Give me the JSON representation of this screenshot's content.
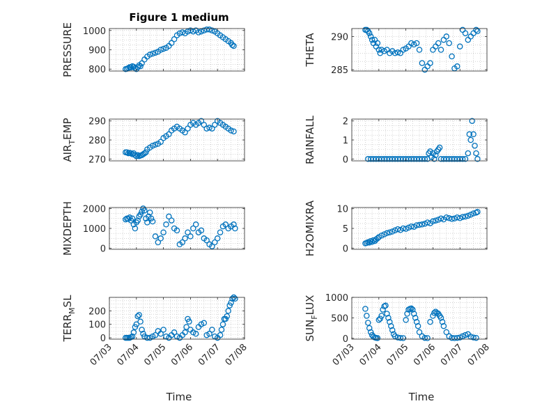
{
  "figure": {
    "title": "Figure 1 medium",
    "xlabel_left": "Time",
    "xlabel_right": "Time"
  },
  "colors": {
    "marker": "#0072BD",
    "axis": "#262626",
    "grid": "#b8b8b8",
    "box": "#ffffff"
  },
  "chart_data": [
    {
      "type": "scatter",
      "name": "PRESSURE",
      "ylabel_main": "PRESSURE",
      "ylabel_sub": "",
      "ylim": [
        790,
        1010
      ],
      "yticks": [
        800,
        900,
        1000
      ],
      "ytick_labels": [
        "800",
        "900",
        "1000"
      ],
      "xlim": [
        3,
        8
      ],
      "xticks": [
        3,
        4,
        5,
        6,
        7,
        8
      ],
      "x": [
        3.6,
        3.65,
        3.7,
        3.75,
        3.8,
        3.85,
        3.9,
        3.95,
        4.0,
        4.05,
        4.1,
        4.15,
        4.2,
        4.3,
        4.4,
        4.5,
        4.6,
        4.7,
        4.8,
        4.9,
        5.0,
        5.1,
        5.2,
        5.3,
        5.4,
        5.5,
        5.6,
        5.7,
        5.8,
        5.9,
        6.0,
        6.1,
        6.2,
        6.3,
        6.4,
        6.5,
        6.6,
        6.7,
        6.8,
        6.9,
        7.0,
        7.1,
        7.2,
        7.3,
        7.4,
        7.5,
        7.55,
        7.6
      ],
      "y": [
        800,
        802,
        805,
        810,
        808,
        815,
        812,
        805,
        800,
        810,
        820,
        815,
        830,
        850,
        865,
        875,
        880,
        885,
        890,
        900,
        905,
        910,
        920,
        935,
        955,
        975,
        985,
        990,
        985,
        995,
        1000,
        995,
        1000,
        990,
        995,
        1000,
        1005,
        1005,
        1000,
        995,
        985,
        975,
        965,
        955,
        945,
        935,
        925,
        920
      ]
    },
    {
      "type": "scatter",
      "name": "THETA",
      "ylabel_main": "THETA",
      "ylabel_sub": "",
      "ylim": [
        284.8,
        291.2
      ],
      "yticks": [
        285,
        290
      ],
      "ytick_labels": [
        "285",
        "290"
      ],
      "xlim": [
        3,
        8
      ],
      "xticks": [
        3,
        4,
        5,
        6,
        7,
        8
      ],
      "x": [
        3.5,
        3.55,
        3.6,
        3.65,
        3.7,
        3.75,
        3.8,
        3.85,
        3.9,
        3.95,
        4.0,
        4.05,
        4.1,
        4.2,
        4.3,
        4.4,
        4.5,
        4.6,
        4.7,
        4.8,
        4.9,
        5.0,
        5.1,
        5.2,
        5.3,
        5.4,
        5.5,
        5.6,
        5.7,
        5.8,
        5.9,
        6.0,
        6.1,
        6.2,
        6.3,
        6.4,
        6.5,
        6.6,
        6.7,
        6.8,
        6.9,
        7.0,
        7.1,
        7.2,
        7.3,
        7.4,
        7.5,
        7.6,
        7.65
      ],
      "y": [
        291,
        291,
        290.8,
        290.5,
        290,
        289.5,
        289,
        289.5,
        288.5,
        289,
        288,
        287.5,
        288,
        287.8,
        288,
        287.5,
        287.8,
        287.5,
        287.6,
        287.5,
        288,
        288.2,
        288.5,
        289,
        288.8,
        289,
        288,
        286,
        285,
        285.5,
        286,
        288,
        288.5,
        289,
        288,
        289.5,
        290,
        289,
        287,
        285.2,
        285.5,
        288.5,
        291,
        290.5,
        289.5,
        290,
        290.5,
        291,
        290.8
      ]
    },
    {
      "type": "scatter",
      "name": "AIR_TEMP",
      "ylabel_main": "AIR",
      "ylabel_sub": "T",
      "ylabel_post": "EMP",
      "ylim": [
        269,
        291
      ],
      "yticks": [
        270,
        280,
        290
      ],
      "ytick_labels": [
        "270",
        "280",
        "290"
      ],
      "xlim": [
        3,
        8
      ],
      "xticks": [
        3,
        4,
        5,
        6,
        7,
        8
      ],
      "x": [
        3.6,
        3.65,
        3.7,
        3.75,
        3.8,
        3.85,
        3.9,
        3.95,
        4.0,
        4.05,
        4.1,
        4.15,
        4.2,
        4.25,
        4.3,
        4.35,
        4.4,
        4.5,
        4.6,
        4.7,
        4.8,
        4.9,
        5.0,
        5.1,
        5.2,
        5.3,
        5.4,
        5.5,
        5.6,
        5.7,
        5.8,
        5.9,
        6.0,
        6.1,
        6.2,
        6.3,
        6.4,
        6.5,
        6.6,
        6.7,
        6.8,
        6.9,
        7.0,
        7.1,
        7.2,
        7.3,
        7.4,
        7.5,
        7.6
      ],
      "y": [
        273.5,
        273.5,
        273,
        273.2,
        273,
        272.5,
        273,
        272,
        271.5,
        272,
        271.5,
        271.8,
        272,
        272.5,
        273,
        273.5,
        275,
        276,
        277,
        277.5,
        278,
        279,
        281,
        282,
        283,
        285,
        286,
        287,
        286,
        285,
        284,
        286,
        288,
        289,
        288,
        289,
        290,
        288,
        286,
        286.5,
        286,
        288,
        290,
        289,
        288,
        287,
        286,
        285,
        284.5
      ]
    },
    {
      "type": "scatter",
      "name": "RAINFALL",
      "ylabel_main": "RAINFALL",
      "ylabel_sub": "",
      "ylim": [
        -0.1,
        2.1
      ],
      "yticks": [
        0,
        1,
        2
      ],
      "ytick_labels": [
        "0",
        "1",
        "2"
      ],
      "xlim": [
        3,
        8
      ],
      "xticks": [
        3,
        4,
        5,
        6,
        7,
        8
      ],
      "x": [
        3.6,
        3.7,
        3.8,
        3.9,
        4.0,
        4.1,
        4.2,
        4.3,
        4.4,
        4.5,
        4.6,
        4.7,
        4.8,
        4.9,
        5.0,
        5.1,
        5.2,
        5.3,
        5.4,
        5.5,
        5.6,
        5.7,
        5.8,
        5.85,
        5.9,
        5.95,
        6.0,
        6.05,
        6.1,
        6.15,
        6.2,
        6.25,
        6.3,
        6.4,
        6.5,
        6.6,
        6.7,
        6.8,
        6.9,
        7.0,
        7.1,
        7.2,
        7.3,
        7.35,
        7.4,
        7.45,
        7.5,
        7.55,
        7.6,
        7.65
      ],
      "y": [
        0,
        0,
        0,
        0,
        0,
        0,
        0,
        0,
        0,
        0,
        0,
        0,
        0,
        0,
        0,
        0,
        0,
        0,
        0,
        0,
        0,
        0,
        0,
        0.3,
        0.4,
        0.1,
        0.3,
        0,
        0.2,
        0.4,
        0.5,
        0.6,
        0,
        0,
        0,
        0,
        0,
        0,
        0,
        0,
        0,
        0,
        0.3,
        1.3,
        1.0,
        2.0,
        1.3,
        0.7,
        0.3,
        0
      ]
    },
    {
      "type": "scatter",
      "name": "MIXDEPTH",
      "ylabel_main": "MIXDEPTH",
      "ylabel_sub": "",
      "ylim": [
        -50,
        2050
      ],
      "yticks": [
        0,
        1000,
        2000
      ],
      "ytick_labels": [
        "0",
        "1000",
        "2000"
      ],
      "xlim": [
        3,
        8
      ],
      "xticks": [
        3,
        4,
        5,
        6,
        7,
        8
      ],
      "x": [
        3.6,
        3.65,
        3.7,
        3.75,
        3.8,
        3.85,
        3.9,
        3.95,
        4.0,
        4.05,
        4.1,
        4.15,
        4.2,
        4.25,
        4.3,
        4.35,
        4.4,
        4.45,
        4.5,
        4.55,
        4.6,
        4.7,
        4.8,
        4.9,
        5.0,
        5.1,
        5.2,
        5.3,
        5.4,
        5.5,
        5.6,
        5.7,
        5.8,
        5.9,
        6.0,
        6.1,
        6.2,
        6.3,
        6.4,
        6.5,
        6.6,
        6.7,
        6.8,
        6.9,
        7.0,
        7.1,
        7.2,
        7.3,
        7.4,
        7.5,
        7.6,
        7.65
      ],
      "y": [
        1450,
        1500,
        1480,
        1550,
        1400,
        1500,
        1200,
        1000,
        1300,
        1400,
        1600,
        1700,
        1850,
        2000,
        1900,
        1500,
        1300,
        1600,
        1800,
        1500,
        1350,
        600,
        300,
        500,
        800,
        1200,
        1600,
        1400,
        1000,
        900,
        200,
        300,
        500,
        800,
        600,
        1000,
        1200,
        800,
        900,
        500,
        400,
        200,
        100,
        300,
        500,
        800,
        1100,
        1200,
        1000,
        1100,
        1200,
        1000
      ]
    },
    {
      "type": "scatter",
      "name": "H2OMIXRA",
      "ylabel_main": "H2OMIXRA",
      "ylabel_sub": "",
      "ylim": [
        -0.3,
        10.3
      ],
      "yticks": [
        0,
        5,
        10
      ],
      "ytick_labels": [
        "0",
        "5",
        "10"
      ],
      "xlim": [
        3,
        8
      ],
      "xticks": [
        3,
        4,
        5,
        6,
        7,
        8
      ],
      "x": [
        3.5,
        3.55,
        3.6,
        3.65,
        3.7,
        3.75,
        3.8,
        3.85,
        3.9,
        3.95,
        4.0,
        4.1,
        4.2,
        4.3,
        4.4,
        4.5,
        4.6,
        4.7,
        4.8,
        4.9,
        5.0,
        5.1,
        5.2,
        5.3,
        5.4,
        5.5,
        5.6,
        5.7,
        5.8,
        5.9,
        6.0,
        6.1,
        6.2,
        6.3,
        6.4,
        6.5,
        6.6,
        6.7,
        6.8,
        6.9,
        7.0,
        7.1,
        7.2,
        7.3,
        7.4,
        7.5,
        7.6,
        7.65
      ],
      "y": [
        1.2,
        1.3,
        1.5,
        1.4,
        1.8,
        1.6,
        2.0,
        1.8,
        2.2,
        2.5,
        2.8,
        3.2,
        3.5,
        3.8,
        4.0,
        4.2,
        4.5,
        4.8,
        4.6,
        5.0,
        4.9,
        5.2,
        5.5,
        5.4,
        5.8,
        5.9,
        6.0,
        6.2,
        6.5,
        6.3,
        6.8,
        7.0,
        7.2,
        7.5,
        7.3,
        7.8,
        7.6,
        7.4,
        7.5,
        7.8,
        7.6,
        7.9,
        8.0,
        8.2,
        8.5,
        8.8,
        9.0,
        9.2
      ]
    },
    {
      "type": "scatter",
      "name": "TERR_MSL",
      "ylabel_main": "TERR",
      "ylabel_sub": "M",
      "ylabel_post": "SL",
      "ylim": [
        -10,
        300
      ],
      "yticks": [
        0,
        100,
        200
      ],
      "ytick_labels": [
        "0",
        "100",
        "200"
      ],
      "xlim": [
        3,
        8
      ],
      "xticks": [
        3,
        4,
        5,
        6,
        7,
        8
      ],
      "x": [
        3.6,
        3.65,
        3.7,
        3.75,
        3.8,
        3.85,
        3.9,
        3.95,
        4.0,
        4.05,
        4.1,
        4.15,
        4.2,
        4.25,
        4.3,
        4.4,
        4.5,
        4.6,
        4.7,
        4.8,
        4.9,
        5.0,
        5.1,
        5.2,
        5.3,
        5.4,
        5.5,
        5.6,
        5.7,
        5.8,
        5.85,
        5.9,
        5.95,
        6.0,
        6.1,
        6.2,
        6.3,
        6.4,
        6.5,
        6.6,
        6.7,
        6.8,
        6.9,
        7.0,
        7.1,
        7.15,
        7.2,
        7.25,
        7.3,
        7.35,
        7.4,
        7.45,
        7.5,
        7.55,
        7.6,
        7.65
      ],
      "y": [
        0,
        0,
        0,
        0,
        5,
        10,
        40,
        80,
        100,
        160,
        170,
        120,
        60,
        30,
        10,
        0,
        0,
        10,
        20,
        50,
        30,
        60,
        10,
        0,
        20,
        40,
        10,
        0,
        20,
        40,
        80,
        140,
        120,
        60,
        40,
        30,
        80,
        100,
        110,
        20,
        30,
        60,
        10,
        0,
        20,
        60,
        100,
        140,
        140,
        160,
        200,
        240,
        260,
        290,
        300,
        290
      ]
    },
    {
      "type": "scatter",
      "name": "SUN_FLUX",
      "ylabel_main": "SUN",
      "ylabel_sub": "F",
      "ylabel_post": "LUX",
      "ylim": [
        -20,
        1000
      ],
      "yticks": [
        0,
        500,
        1000
      ],
      "ytick_labels": [
        "0",
        "500",
        "1000"
      ],
      "xlim": [
        3,
        8
      ],
      "xticks": [
        3,
        4,
        5,
        6,
        7,
        8
      ],
      "x": [
        3.5,
        3.55,
        3.6,
        3.65,
        3.7,
        3.75,
        3.8,
        3.85,
        3.9,
        3.95,
        4.0,
        4.05,
        4.1,
        4.15,
        4.2,
        4.25,
        4.3,
        4.35,
        4.4,
        4.45,
        4.5,
        4.55,
        4.6,
        4.7,
        4.8,
        4.9,
        5.0,
        5.05,
        5.1,
        5.15,
        5.2,
        5.25,
        5.3,
        5.35,
        5.4,
        5.45,
        5.5,
        5.6,
        5.7,
        5.8,
        5.9,
        6.0,
        6.05,
        6.1,
        6.15,
        6.2,
        6.25,
        6.3,
        6.35,
        6.4,
        6.5,
        6.6,
        6.7,
        6.8,
        6.9,
        7.0,
        7.1,
        7.2,
        7.3,
        7.4,
        7.5,
        7.6
      ],
      "y": [
        720,
        550,
        380,
        250,
        150,
        80,
        40,
        20,
        10,
        5,
        450,
        480,
        550,
        700,
        780,
        800,
        600,
        500,
        400,
        300,
        200,
        100,
        50,
        20,
        10,
        5,
        450,
        600,
        700,
        720,
        730,
        700,
        600,
        500,
        400,
        300,
        150,
        50,
        10,
        5,
        400,
        550,
        620,
        650,
        620,
        600,
        550,
        500,
        400,
        300,
        150,
        50,
        10,
        5,
        10,
        20,
        50,
        80,
        100,
        40,
        20,
        10
      ]
    }
  ]
}
